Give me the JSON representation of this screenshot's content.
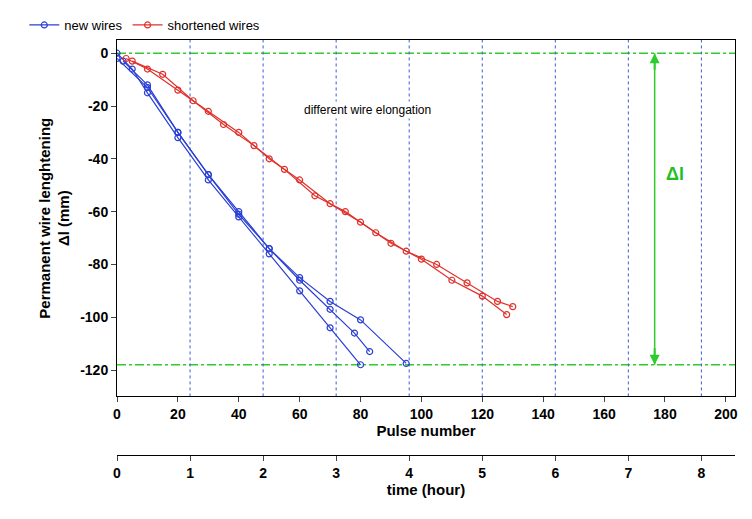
{
  "chart_data": {
    "type": "line",
    "x_label": "Pulse number",
    "x2_label": "time (hour)",
    "y_label": "Permanent wire lenghtening\nΔl (mm)",
    "annotations": [
      "different wire elongation",
      "Δl"
    ],
    "legend": "top left",
    "grid": true,
    "marker": "open circle",
    "xlim": [
      0,
      203
    ],
    "xticks": [
      0,
      20,
      40,
      60,
      80,
      100,
      120,
      140,
      160,
      180,
      200
    ],
    "x2lim": [
      0,
      8.46
    ],
    "x2ticks": [
      0,
      1,
      2,
      3,
      4,
      5,
      6,
      7,
      8
    ],
    "ylim": [
      -130,
      5
    ],
    "yticks": [
      0,
      -20,
      -40,
      -60,
      -80,
      -100,
      -120
    ],
    "reference_lines": [
      0,
      -118
    ],
    "series": [
      {
        "name": "new wires",
        "color": "#2a3fd6",
        "x": [
          0,
          5,
          10,
          20,
          30,
          40,
          50,
          60,
          70,
          80
        ],
        "values": [
          0,
          -6,
          -15,
          -32,
          -48,
          -62,
          -76,
          -90,
          -104,
          -118
        ]
      },
      {
        "name": "new wires",
        "color": "#2a3fd6",
        "x": [
          2,
          10,
          20,
          30,
          40,
          50,
          60,
          70,
          78,
          83
        ],
        "values": [
          -3,
          -12,
          -30,
          -46,
          -60,
          -74,
          -86,
          -97,
          -106,
          -113
        ]
      },
      {
        "name": "new wires",
        "color": "#2a3fd6",
        "x": [
          0,
          10,
          20,
          30,
          40,
          50,
          60,
          70,
          80,
          95
        ],
        "values": [
          -2,
          -13,
          -30,
          -46,
          -61,
          -74,
          -85,
          -94,
          -101,
          -117.5
        ]
      },
      {
        "name": "shortened wires",
        "color": "#e0302a",
        "x": [
          3,
          10,
          20,
          30,
          40,
          50,
          60,
          70,
          80,
          90,
          100,
          110,
          120,
          128
        ],
        "values": [
          -2,
          -6,
          -14,
          -22,
          -30,
          -40,
          -48,
          -57,
          -64,
          -72,
          -78,
          -86,
          -92,
          -99
        ]
      },
      {
        "name": "shortened wires",
        "color": "#e0302a",
        "x": [
          5,
          15,
          25,
          35,
          45,
          55,
          65,
          75,
          85,
          95,
          105,
          115,
          125,
          130
        ],
        "values": [
          -3,
          -8,
          -18,
          -27,
          -35,
          -44,
          -54,
          -60,
          -68,
          -75,
          -80,
          -87,
          -94,
          -96
        ]
      }
    ]
  }
}
